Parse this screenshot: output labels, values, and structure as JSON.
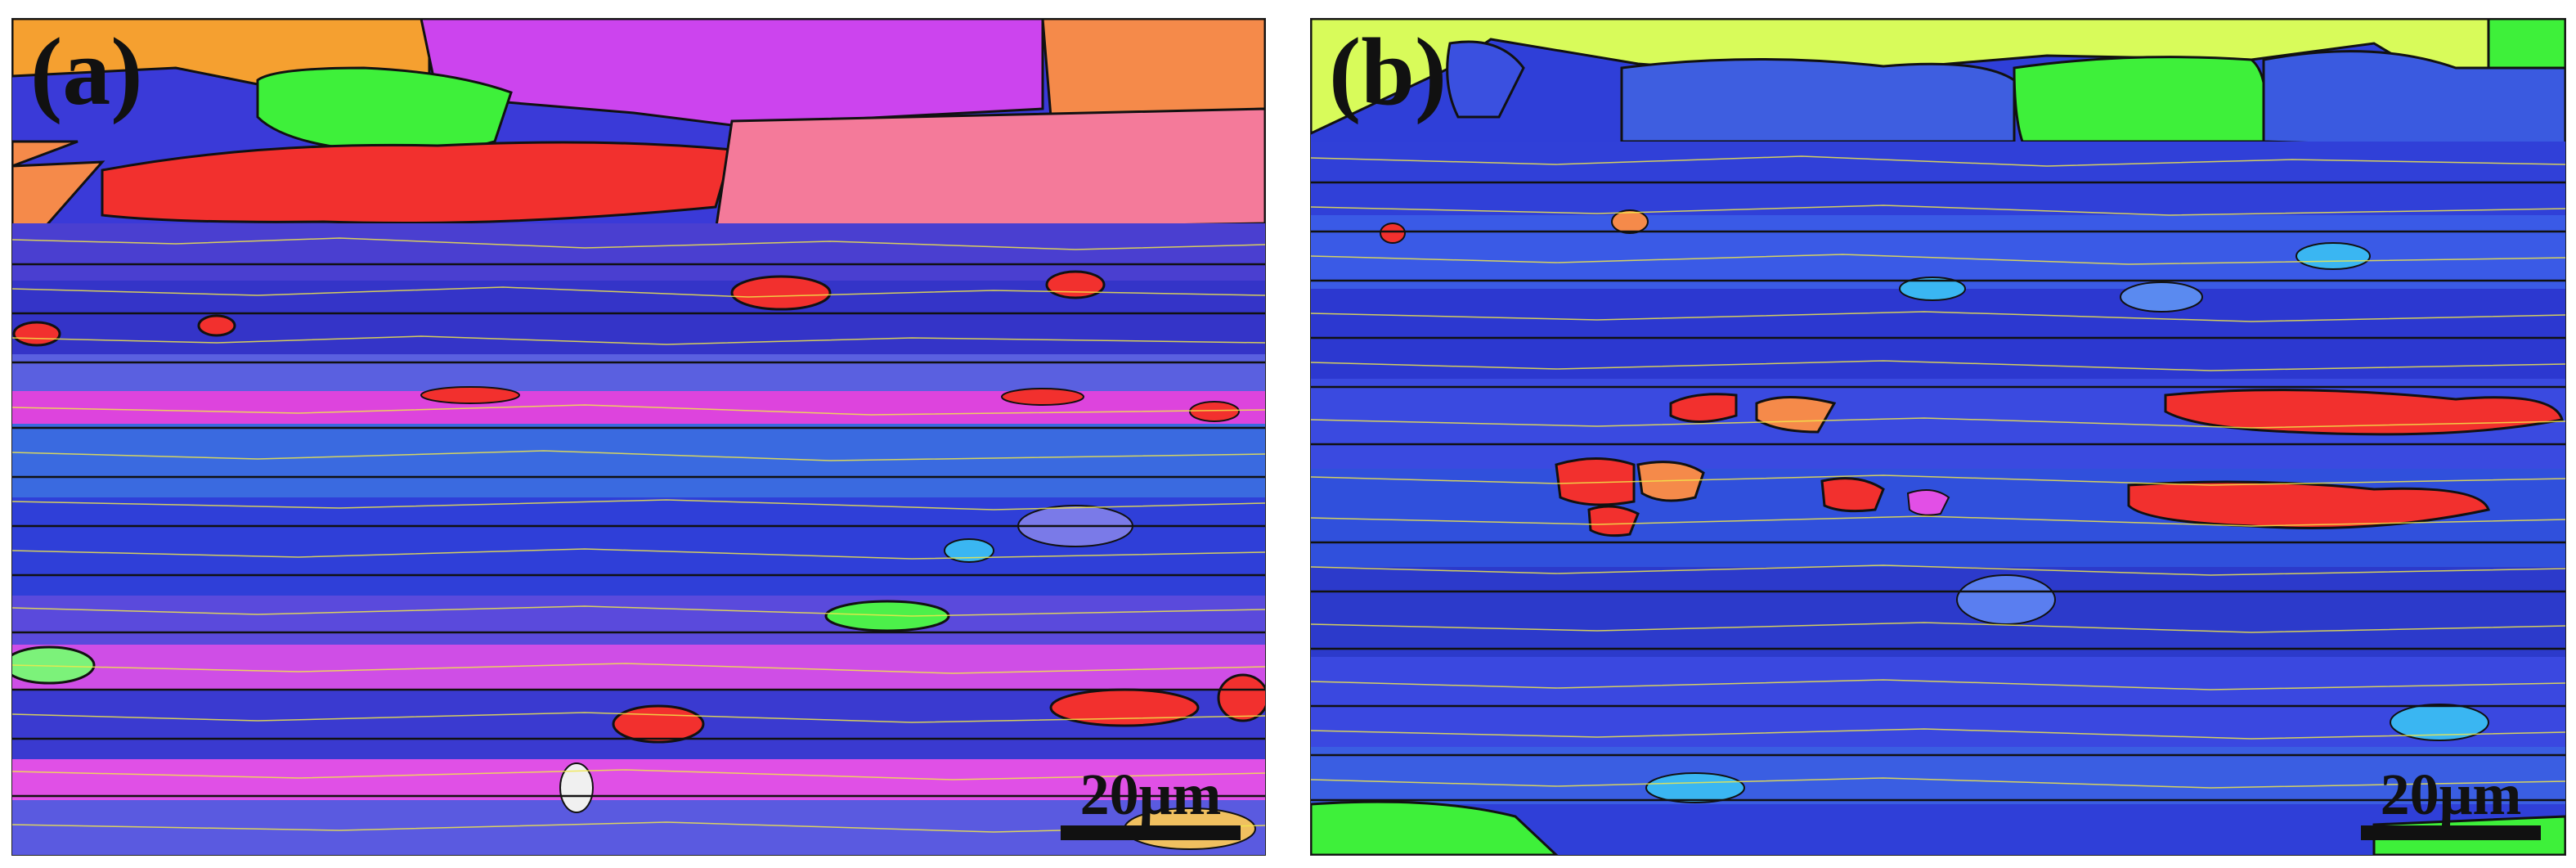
{
  "panels": [
    {
      "label": "(a)",
      "scale_text": "20μm"
    },
    {
      "label": "(b)",
      "scale_text": "20μm"
    }
  ],
  "colors": {
    "blue": "#2f3fd8",
    "violet": "#6a4ee0",
    "magenta": "#e24fe6",
    "pink": "#f06aa8",
    "red": "#f2302e",
    "orange": "#f59a3a",
    "green": "#3ef03a",
    "yellow_green": "#d8fb5a",
    "cyan": "#3ab6f2",
    "grain_boundary": "#111111",
    "low_angle_boundary": "#f2e84a"
  }
}
